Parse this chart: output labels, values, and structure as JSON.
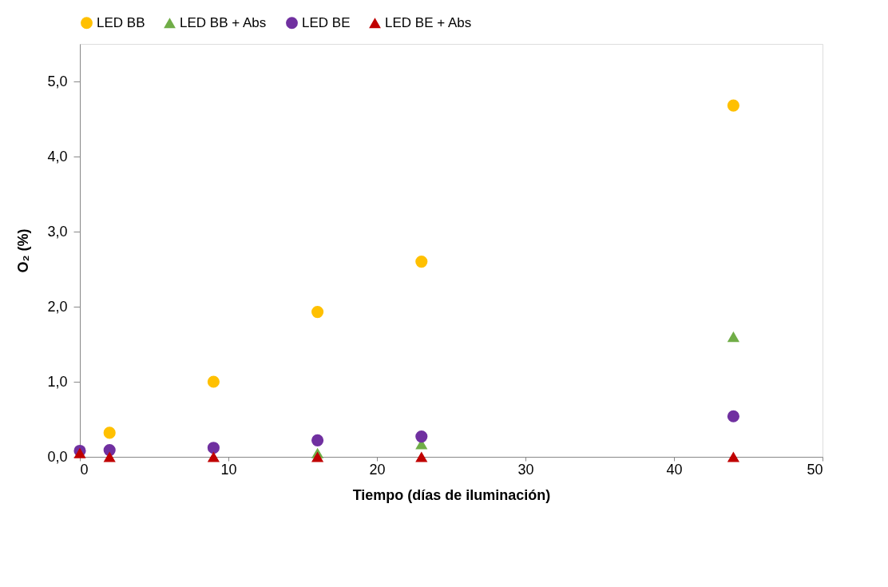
{
  "chart_data": {
    "type": "scatter",
    "xlabel": "Tiempo (días de iluminación)",
    "ylabel": "O₂ (%)",
    "x": [
      0,
      2,
      9,
      16,
      23,
      44
    ],
    "series": [
      {
        "name": "LED BB",
        "color": "#ffc000",
        "marker": "circle",
        "values": [
          null,
          0.32,
          1.0,
          1.93,
          2.6,
          4.68
        ]
      },
      {
        "name": "LED BB + Abs",
        "color": "#70ad47",
        "marker": "triangle",
        "values": [
          null,
          null,
          null,
          0.05,
          0.17,
          1.6
        ]
      },
      {
        "name": "LED BE",
        "color": "#7030a0",
        "marker": "circle",
        "values": [
          0.08,
          0.09,
          0.12,
          0.22,
          0.27,
          0.54
        ]
      },
      {
        "name": "LED BE + Abs",
        "color": "#c00000",
        "marker": "triangle",
        "values": [
          0.05,
          0.0,
          0.0,
          0.0,
          0.0,
          0.0
        ]
      }
    ],
    "xlim": [
      0,
      50
    ],
    "xticks": [
      0,
      10,
      20,
      30,
      40,
      50
    ],
    "ylim": [
      0,
      5.5
    ],
    "yticks": [
      {
        "value": 0,
        "label": "0,0"
      },
      {
        "value": 1,
        "label": "1,0"
      },
      {
        "value": 2,
        "label": "2,0"
      },
      {
        "value": 3,
        "label": "3,0"
      },
      {
        "value": 4,
        "label": "4,0"
      },
      {
        "value": 5,
        "label": "5,0"
      }
    ],
    "legend": "top",
    "grid": false
  }
}
